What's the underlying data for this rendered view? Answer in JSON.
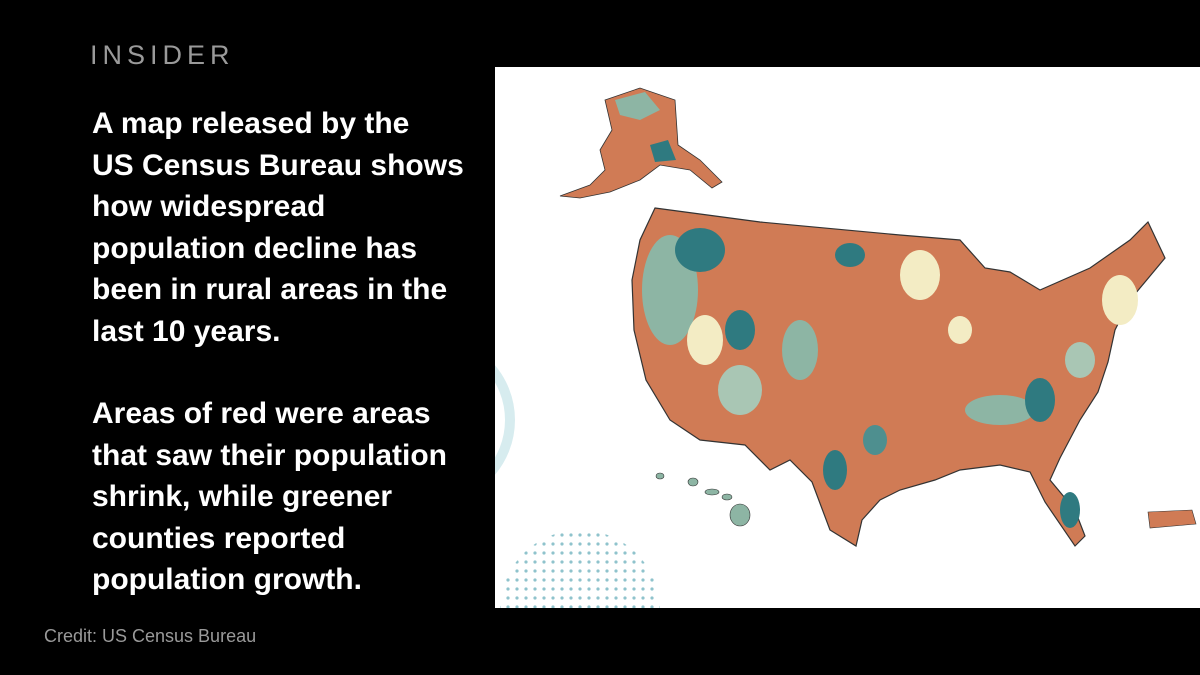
{
  "brand": "INSIDER",
  "paragraphs": [
    [
      "A map released by the",
      "US Census Bureau shows",
      "how widespread",
      "population decline has",
      "been in rural areas in the",
      "last 10 years."
    ],
    [
      "Areas of red were areas",
      "that saw their population",
      "shrink, while greener",
      "counties reported",
      "population growth."
    ]
  ],
  "credit": "Credit: US Census Bureau"
}
